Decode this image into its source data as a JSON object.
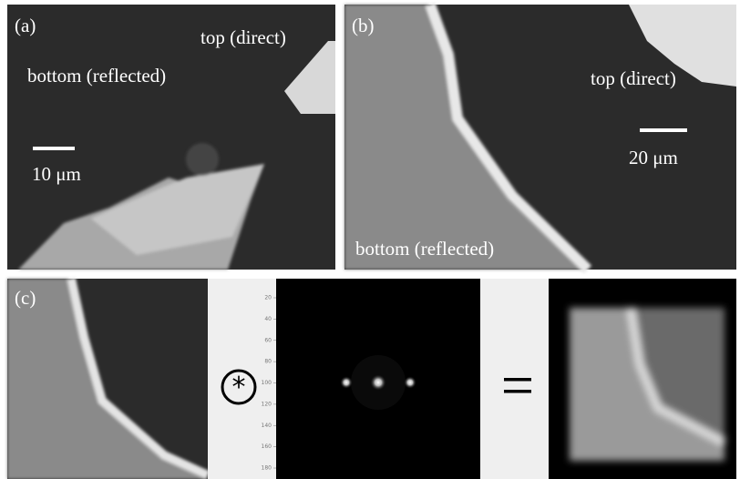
{
  "panels": {
    "a": {
      "label": "(a)",
      "top_label": "top (direct)",
      "bottom_label": "bottom (reflected)",
      "scale_label": "10 μm"
    },
    "b": {
      "label": "(b)",
      "top_label": "top (direct)",
      "bottom_label": "bottom (reflected)",
      "scale_label": "20 μm"
    },
    "c": {
      "label": "(c)",
      "kernel_ticks": [
        20,
        40,
        60,
        80,
        100,
        120,
        140,
        160,
        180
      ]
    }
  }
}
